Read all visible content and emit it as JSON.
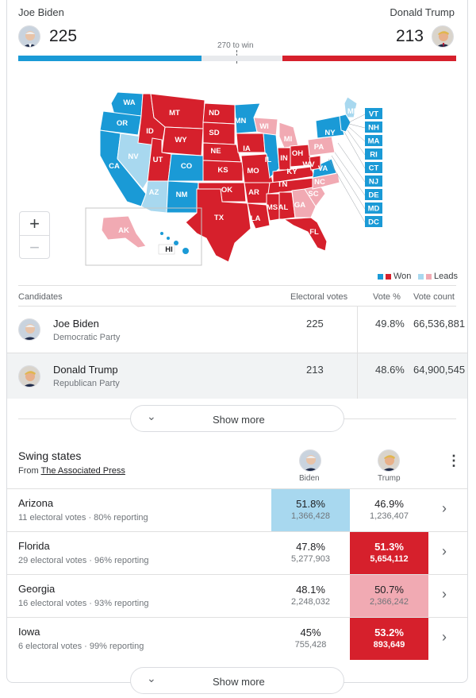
{
  "header": {
    "biden_name": "Joe Biden",
    "trump_name": "Donald Trump",
    "biden_votes": "225",
    "trump_votes": "213",
    "to_win": "270 to win",
    "biden_progress": 225,
    "trump_progress": 213,
    "total_ev": 538
  },
  "colors": {
    "dem_won": "#1a9ad6",
    "rep_won": "#d6202c",
    "dem_leads": "#a8d8ef",
    "rep_leads": "#f1aab3",
    "undecided": "#e8eaed"
  },
  "map": {
    "states": [
      "WA",
      "OR",
      "CA",
      "NV",
      "ID",
      "MT",
      "WY",
      "UT",
      "AZ",
      "CO",
      "NM",
      "ND",
      "SD",
      "NE",
      "KS",
      "OK",
      "TX",
      "MN",
      "IA",
      "MO",
      "AR",
      "LA",
      "WI",
      "IL",
      "MI",
      "IN",
      "KY",
      "TN",
      "MS",
      "AL",
      "GA",
      "FL",
      "SC",
      "NC",
      "VA",
      "WV",
      "OH",
      "PA",
      "NY",
      "ME",
      "AK",
      "HI"
    ],
    "side_states": [
      "VT",
      "NH",
      "MA",
      "RI",
      "CT",
      "NJ",
      "DE",
      "MD",
      "DC"
    ],
    "zoom_in": "+",
    "zoom_out": "−",
    "legend_won": "Won",
    "legend_leads": "Leads"
  },
  "table": {
    "headers": [
      "Candidates",
      "Electoral votes",
      "Vote %",
      "Vote count"
    ],
    "rows": [
      {
        "name": "Joe Biden",
        "party": "Democratic Party",
        "ev": "225",
        "pct": "49.8%",
        "count": "66,536,881"
      },
      {
        "name": "Donald Trump",
        "party": "Republican Party",
        "ev": "213",
        "pct": "48.6%",
        "count": "64,900,545"
      }
    ],
    "show_more": "Show more"
  },
  "swing": {
    "title": "Swing states",
    "from": "From",
    "source": "The Associated Press",
    "col_biden": "Biden",
    "col_trump": "Trump",
    "rows": [
      {
        "state": "Arizona",
        "sub": "11 electoral votes · 80% reporting",
        "b_pct": "51.8%",
        "b_votes": "1,366,428",
        "t_pct": "46.9%",
        "t_votes": "1,236,407"
      },
      {
        "state": "Florida",
        "sub": "29 electoral votes · 96% reporting",
        "b_pct": "47.8%",
        "b_votes": "5,277,903",
        "t_pct": "51.3%",
        "t_votes": "5,654,112"
      },
      {
        "state": "Georgia",
        "sub": "16 electoral votes · 93% reporting",
        "b_pct": "48.1%",
        "b_votes": "2,248,032",
        "t_pct": "50.7%",
        "t_votes": "2,366,242"
      },
      {
        "state": "Iowa",
        "sub": "6 electoral votes · 99% reporting",
        "b_pct": "45%",
        "b_votes": "755,428",
        "t_pct": "53.2%",
        "t_votes": "893,649"
      }
    ],
    "show_more": "Show more"
  }
}
